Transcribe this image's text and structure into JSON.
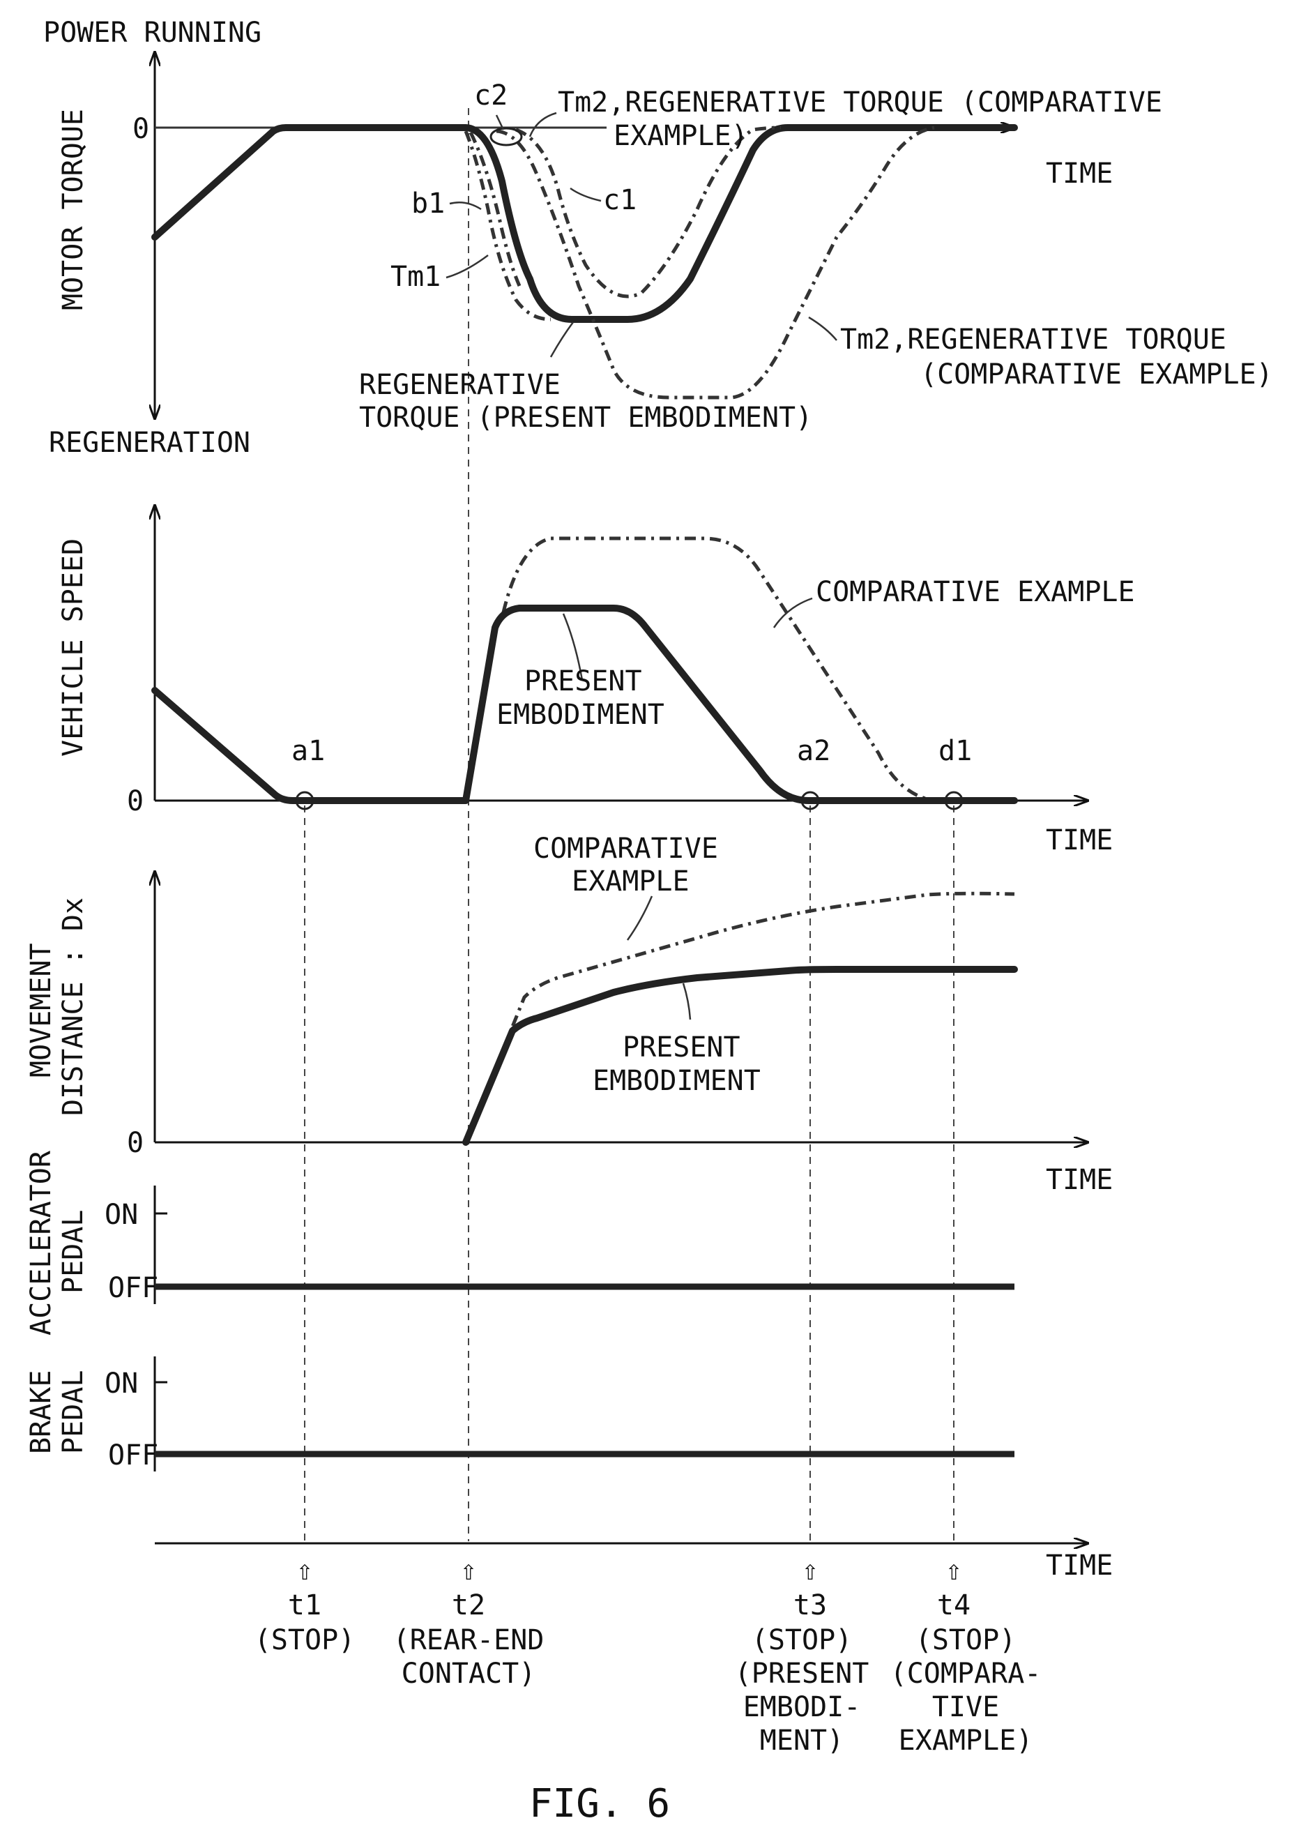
{
  "figure": {
    "caption": "FIG. 6"
  },
  "torque_panel": {
    "top_label": "POWER RUNNING",
    "bottom_label": "REGENERATION",
    "y_title": "MOTOR TORQUE",
    "zero": "0",
    "x_label": "TIME",
    "labels": {
      "c2": "c2",
      "c1": "c1",
      "b1": "b1",
      "tm1": "Tm1",
      "tm2_top_line1": "Tm2,REGENERATIVE TORQUE (COMPARATIVE",
      "tm2_top_line2": "EXAMPLE)",
      "tm2_right_line1": "Tm2,REGENERATIVE TORQUE",
      "tm2_right_line2": "(COMPARATIVE EXAMPLE)",
      "present_line1": "REGENERATIVE",
      "present_line2": "TORQUE (PRESENT EMBODIMENT)"
    }
  },
  "speed_panel": {
    "y_title": "VEHICLE SPEED",
    "zero": "0",
    "x_label": "TIME",
    "comparative": "COMPARATIVE EXAMPLE",
    "present_line1": "PRESENT",
    "present_line2": "EMBODIMENT",
    "points": {
      "a1": "a1",
      "a2": "a2",
      "d1": "d1"
    }
  },
  "distance_panel": {
    "y_title_line1": "MOVEMENT",
    "y_title_line2": "DISTANCE : Dx",
    "zero": "0",
    "x_label": "TIME",
    "comparative_line1": "COMPARATIVE",
    "comparative_line2": "EXAMPLE",
    "present_line1": "PRESENT",
    "present_line2": "EMBODIMENT"
  },
  "accel_panel": {
    "y_title_line1": "ACCELERATOR",
    "y_title_line2": "PEDAL",
    "on": "ON",
    "off": "OFF"
  },
  "brake_panel": {
    "y_title_line1": "BRAKE",
    "y_title_line2": "PEDAL",
    "on": "ON",
    "off": "OFF"
  },
  "time_axis": {
    "x_label": "TIME",
    "arrow_glyph": "⇧",
    "events": [
      {
        "id": "t1",
        "lines": [
          "(STOP)"
        ]
      },
      {
        "id": "t2",
        "lines": [
          "(REAR-END",
          "CONTACT)"
        ]
      },
      {
        "id": "t3",
        "lines": [
          "(STOP)",
          "(PRESENT",
          "EMBODI-",
          "MENT)"
        ]
      },
      {
        "id": "t4",
        "lines": [
          "(STOP)",
          "(COMPARA-",
          "TIVE",
          "EXAMPLE)"
        ]
      }
    ]
  }
}
